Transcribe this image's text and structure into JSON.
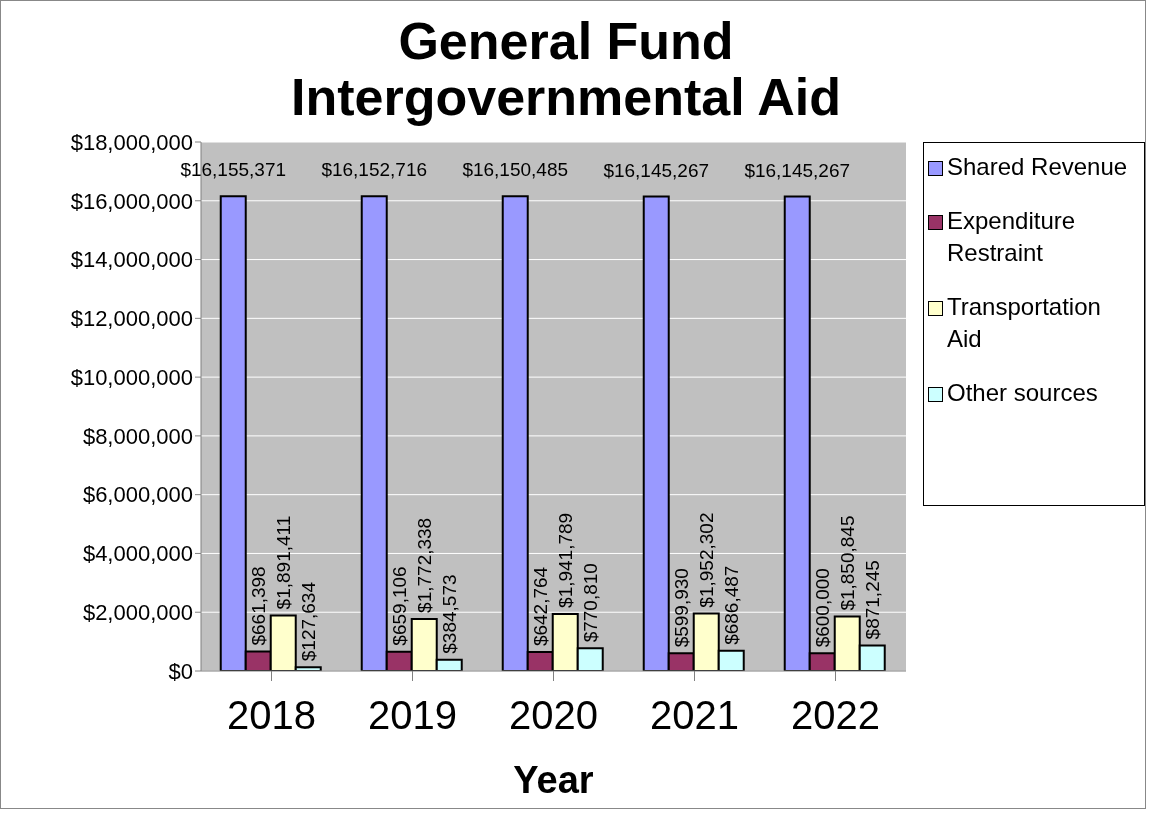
{
  "chart_data": {
    "type": "bar",
    "title": "General Fund Intergovernmental Aid",
    "xlabel": "Year",
    "categories": [
      "2018",
      "2019",
      "2020",
      "2021",
      "2022"
    ],
    "series": [
      {
        "name": "Shared Revenue",
        "color": "#9999ff",
        "values": [
          16155371,
          16152716,
          16150485,
          16145267,
          16145267
        ],
        "value_labels": [
          "$16,155,371",
          "$16,152,716",
          "$16,150,485",
          "$16,145,267",
          "$16,145,267"
        ]
      },
      {
        "name": "Expenditure Restraint",
        "color": "#993366",
        "values": [
          661398,
          659106,
          642764,
          599930,
          600000
        ],
        "value_labels": [
          "$661,398",
          "$659,106",
          "$642,764",
          "$599,930",
          "$600,000"
        ]
      },
      {
        "name": "Transportation Aid",
        "color": "#ffffcc",
        "values": [
          1891411,
          1772338,
          1941789,
          1952302,
          1850845
        ],
        "value_labels": [
          "$1,891,411",
          "$1,772,338",
          "$1,941,789",
          "$1,952,302",
          "$1,850,845"
        ]
      },
      {
        "name": "Other sources",
        "color": "#ccffff",
        "values": [
          127634,
          384573,
          770810,
          686487,
          871245
        ],
        "value_labels": [
          "$127,634",
          "$384,573",
          "$770,810",
          "$686,487",
          "$871,245"
        ]
      }
    ],
    "ylim": [
      0,
      18000000
    ],
    "yticks": [
      {
        "value": 0,
        "label": "$0"
      },
      {
        "value": 2000000,
        "label": "$2,000,000"
      },
      {
        "value": 4000000,
        "label": "$4,000,000"
      },
      {
        "value": 6000000,
        "label": "$6,000,000"
      },
      {
        "value": 8000000,
        "label": "$8,000,000"
      },
      {
        "value": 10000000,
        "label": "$10,000,000"
      },
      {
        "value": 12000000,
        "label": "$12,000,000"
      },
      {
        "value": 14000000,
        "label": "$14,000,000"
      },
      {
        "value": 16000000,
        "label": "$16,000,000"
      },
      {
        "value": 18000000,
        "label": "$18,000,000"
      }
    ],
    "grid": "y",
    "legend": "right"
  }
}
